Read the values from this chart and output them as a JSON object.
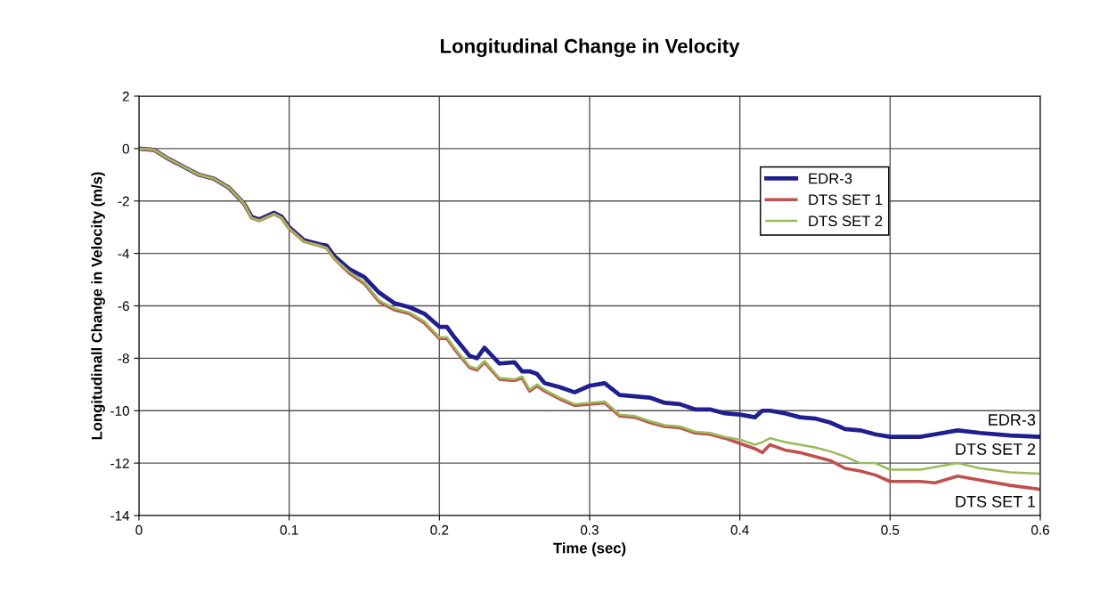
{
  "chart_data": {
    "type": "line",
    "title": "Longitudinal Change in Velocity",
    "xlabel": "Time (sec)",
    "ylabel": "Longitudinall Change in Velocity (m/s)",
    "x": [
      0,
      0.01,
      0.02,
      0.03,
      0.04,
      0.05,
      0.06,
      0.07,
      0.075,
      0.08,
      0.09,
      0.095,
      0.1,
      0.11,
      0.12,
      0.125,
      0.13,
      0.14,
      0.15,
      0.16,
      0.17,
      0.18,
      0.19,
      0.2,
      0.205,
      0.21,
      0.22,
      0.225,
      0.23,
      0.24,
      0.25,
      0.255,
      0.26,
      0.265,
      0.27,
      0.28,
      0.29,
      0.3,
      0.31,
      0.32,
      0.33,
      0.34,
      0.35,
      0.36,
      0.37,
      0.38,
      0.39,
      0.4,
      0.41,
      0.415,
      0.42,
      0.43,
      0.44,
      0.45,
      0.46,
      0.47,
      0.48,
      0.49,
      0.5,
      0.52,
      0.53,
      0.545,
      0.56,
      0.58,
      0.6
    ],
    "series": [
      {
        "name": "EDR-3",
        "color": "#1f1f8f",
        "values": [
          0,
          -0.05,
          -0.4,
          -0.7,
          -1.0,
          -1.15,
          -1.5,
          -2.1,
          -2.6,
          -2.7,
          -2.45,
          -2.6,
          -3.0,
          -3.5,
          -3.65,
          -3.7,
          -4.1,
          -4.6,
          -4.9,
          -5.5,
          -5.9,
          -6.05,
          -6.3,
          -6.8,
          -6.8,
          -7.2,
          -7.9,
          -8.0,
          -7.6,
          -8.2,
          -8.15,
          -8.5,
          -8.5,
          -8.6,
          -8.95,
          -9.1,
          -9.3,
          -9.05,
          -8.95,
          -9.4,
          -9.45,
          -9.5,
          -9.7,
          -9.75,
          -9.95,
          -9.95,
          -10.1,
          -10.15,
          -10.25,
          -10.0,
          -10.0,
          -10.1,
          -10.25,
          -10.3,
          -10.45,
          -10.7,
          -10.75,
          -10.9,
          -11.0,
          -11.0,
          -10.9,
          -10.75,
          -10.85,
          -10.95,
          -11.0
        ]
      },
      {
        "name": "DTS SET 1",
        "color": "#c0504d",
        "values": [
          0,
          -0.05,
          -0.4,
          -0.7,
          -1.0,
          -1.15,
          -1.5,
          -2.1,
          -2.65,
          -2.75,
          -2.5,
          -2.65,
          -3.05,
          -3.55,
          -3.7,
          -3.8,
          -4.2,
          -4.75,
          -5.15,
          -5.85,
          -6.15,
          -6.3,
          -6.65,
          -7.25,
          -7.25,
          -7.65,
          -8.35,
          -8.45,
          -8.15,
          -8.8,
          -8.85,
          -8.75,
          -9.25,
          -9.05,
          -9.25,
          -9.55,
          -9.8,
          -9.75,
          -9.7,
          -10.2,
          -10.25,
          -10.45,
          -10.6,
          -10.65,
          -10.85,
          -10.9,
          -11.05,
          -11.25,
          -11.45,
          -11.6,
          -11.3,
          -11.5,
          -11.6,
          -11.75,
          -11.9,
          -12.2,
          -12.3,
          -12.45,
          -12.7,
          -12.7,
          -12.75,
          -12.5,
          -12.65,
          -12.85,
          -13.0
        ]
      },
      {
        "name": "DTS SET 2",
        "color": "#9bbb59",
        "values": [
          0,
          -0.05,
          -0.4,
          -0.7,
          -1.0,
          -1.15,
          -1.5,
          -2.1,
          -2.65,
          -2.75,
          -2.5,
          -2.65,
          -3.05,
          -3.55,
          -3.7,
          -3.8,
          -4.2,
          -4.7,
          -5.1,
          -5.8,
          -6.1,
          -6.25,
          -6.6,
          -7.2,
          -7.2,
          -7.6,
          -8.3,
          -8.4,
          -8.1,
          -8.75,
          -8.8,
          -8.7,
          -9.2,
          -9.0,
          -9.2,
          -9.5,
          -9.75,
          -9.7,
          -9.65,
          -10.15,
          -10.2,
          -10.4,
          -10.55,
          -10.6,
          -10.8,
          -10.85,
          -11.0,
          -11.1,
          -11.3,
          -11.2,
          -11.05,
          -11.2,
          -11.3,
          -11.4,
          -11.55,
          -11.75,
          -12.0,
          -12.0,
          -12.25,
          -12.25,
          -12.15,
          -12.0,
          -12.2,
          -12.35,
          -12.4
        ]
      }
    ],
    "xlim": [
      0,
      0.6
    ],
    "xticks": [
      0,
      0.1,
      0.2,
      0.3,
      0.4,
      0.5,
      0.6
    ],
    "ylim": [
      -14,
      2
    ],
    "yticks": [
      -14,
      -12,
      -10,
      -8,
      -6,
      -4,
      -2,
      0,
      2
    ],
    "grid": true,
    "legend": "right",
    "marker": "none",
    "line_style": "solid",
    "annotations": [
      "EDR-3",
      "DTS SET 2",
      "DTS SET 1"
    ]
  }
}
